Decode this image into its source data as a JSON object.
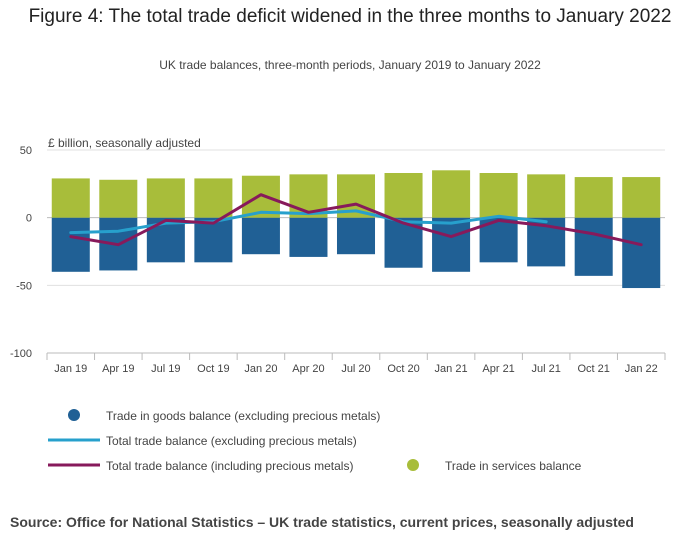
{
  "title": "Figure 4: The total trade deficit widened in the three months to January 2022",
  "subtitle": "UK trade balances, three-month periods, January 2019 to January 2022",
  "source": "Source: Office for National Statistics – UK trade statistics, current prices, seasonally adjusted",
  "colors": {
    "goods": "#206095",
    "services": "#a8bd3a",
    "total_excl": "#27a0cc",
    "total_incl": "#871a5b"
  },
  "chart_data": {
    "type": "bar",
    "ylabel": "£ billion, seasonally adjusted",
    "ylim": [
      -100,
      50
    ],
    "yticks": [
      50,
      0,
      -50,
      -100
    ],
    "categories": [
      "Jan 19",
      "Apr 19",
      "Jul 19",
      "Oct 19",
      "Jan 20",
      "Apr 20",
      "Jul 20",
      "Oct 20",
      "Jan 21",
      "Apr 21",
      "Jul 21",
      "Oct 21",
      "Jan 22"
    ],
    "series": [
      {
        "name": "Trade in goods balance (excluding precious metals)",
        "kind": "bar",
        "values": [
          -40,
          -39,
          -33,
          -33,
          -27,
          -29,
          -27,
          -37,
          -40,
          -33,
          -36,
          -43,
          -52
        ]
      },
      {
        "name": "Trade in services balance",
        "kind": "bar",
        "values": [
          29,
          28,
          29,
          29,
          31,
          32,
          32,
          33,
          35,
          33,
          32,
          30,
          30
        ]
      },
      {
        "name": "Total trade balance (excluding precious metals)",
        "kind": "line",
        "values": [
          -11,
          -10,
          -4,
          -3,
          4,
          3,
          5,
          -3,
          -4,
          1,
          -3,
          null,
          null
        ]
      },
      {
        "name": "Total trade balance (including precious metals)",
        "kind": "line",
        "values": [
          -14,
          -20,
          -2,
          -4,
          17,
          4,
          10,
          -4,
          -14,
          -2,
          -6,
          -12,
          -20
        ]
      }
    ],
    "grid": true
  },
  "legend": {
    "goods": "Trade in goods balance (excluding precious metals)",
    "total_excl": "Total trade balance (excluding precious metals)",
    "total_incl": "Total trade balance (including precious metals)",
    "services": "Trade in services balance"
  }
}
